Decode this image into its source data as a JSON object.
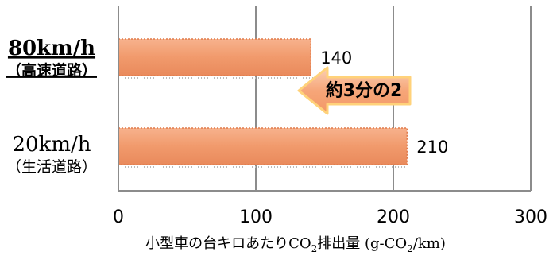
{
  "chart_data": {
    "type": "bar",
    "orientation": "horizontal",
    "categories": [
      {
        "name": "80km/h",
        "sub": "（高速道路）",
        "emphasis": true
      },
      {
        "name": "20km/h",
        "sub": "（生活道路）",
        "emphasis": false
      }
    ],
    "values": [
      140,
      210
    ],
    "data_labels": [
      "140",
      "210"
    ],
    "xlim": [
      0,
      300
    ],
    "x_ticks": [
      0,
      100,
      200,
      300
    ],
    "x_tick_labels": [
      "0",
      "100",
      "200",
      "300"
    ],
    "grid": "vertical",
    "legend": "none",
    "xlabel": {
      "main": "小型車の台キロあたりCO",
      "sub1": "2",
      "mid": "排出量 (g-CO",
      "sub2": "2",
      "end": "/km)"
    },
    "annotation": {
      "text": "約3分の2",
      "style": "arrow-left"
    },
    "colors": {
      "bar": "#f4a57c",
      "bar_edge": "#e07a4a",
      "axis": "#8c8c8c",
      "grid": "#8c8c8c",
      "callout_fill": "#f7ae82",
      "callout_edge": "#ffd27a"
    }
  }
}
